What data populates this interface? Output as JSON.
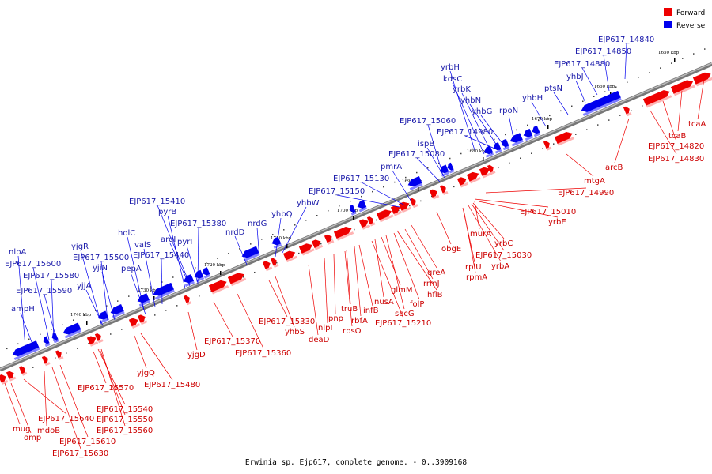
{
  "caption": "Erwinia sp. Ejp617, complete genome. - 0..3909168",
  "legend": [
    {
      "label": "Forward",
      "color": "#ee0000"
    },
    {
      "label": "Reverse",
      "color": "#0000ee"
    }
  ],
  "colors": {
    "forward": "#ee0000",
    "reverse": "#0000ee",
    "forward_label": "#cc0000",
    "reverse_label": "#1a1aaa"
  },
  "ticks": [
    "1650 kbp",
    "1660 kbp",
    "1670 kbp",
    "1680 kbp",
    "1690 kbp",
    "1700 kbp",
    "1710 kbp",
    "1720 kbp",
    "1730 kbp",
    "1740 kbp"
  ],
  "forward_labels": [
    "tcaA",
    "tcaB",
    "EJP617_14820",
    "EJP617_14830",
    "arcB",
    "mtgA",
    "EJP617_14990",
    "EJP617_15010",
    "yrbE",
    "murA",
    "yrbC",
    "EJP617_15030",
    "yrbA",
    "rplU",
    "rpmA",
    "obgE",
    "greA",
    "rrmJ",
    "hflB",
    "folP",
    "glmM",
    "secG",
    "nusA",
    "EJP617_15210",
    "infB",
    "rbfA",
    "truB",
    "rpsO",
    "pnp",
    "nlpI",
    "deaD",
    "yhbS",
    "EJP617_15330",
    "EJP617_15360",
    "EJP617_15370",
    "yjgD",
    "EJP617_15480",
    "yjgQ",
    "EJP617_15570",
    "EJP617_15540",
    "EJP617_15550",
    "EJP617_15560",
    "EJP617_15610",
    "EJP617_15630",
    "EJP617_15640",
    "mdoB",
    "omp",
    "mug"
  ],
  "reverse_labels": [
    "EJP617_14840",
    "EJP617_14850",
    "EJP617_14880",
    "yhbJ",
    "ptsN",
    "yhbH",
    "rpoN",
    "yrbH",
    "kdsC",
    "yrbK",
    "yhbN",
    "yhbG",
    "EJP617_15060",
    "EJP617_14980",
    "ispB",
    "EJP617_15080",
    "pmrA'",
    "EJP617_15130",
    "EJP617_15150",
    "yhbW",
    "yhbQ",
    "nrdG",
    "nrdD",
    "EJP617_15410",
    "pyrB",
    "EJP617_15380",
    "argI",
    "pyrI",
    "holC",
    "valS",
    "EJP617_15440",
    "yjgR",
    "EJP617_15500",
    "yjiN",
    "pepA",
    "yjjA",
    "nlpA",
    "EJP617_15600",
    "EJP617_15580",
    "EJP617_15590",
    "ampH"
  ]
}
